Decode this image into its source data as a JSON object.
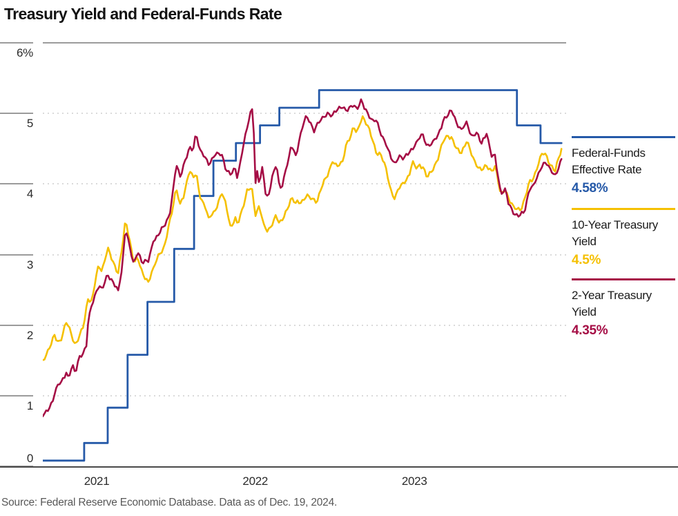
{
  "title": "Treasury Yield and Federal-Funds Rate",
  "source": "Source: Federal Reserve Economic Database. Data as of Dec. 19, 2024.",
  "colors": {
    "fed_funds_blue": "#2559A8",
    "ten_year_yellow": "#F5C000",
    "two_year_crimson": "#A50D45",
    "gridline_gray": "#d4d4d4",
    "axis_gray": "#9b9b9b",
    "baseline_gray": "#4a4a4a",
    "title_black": "#121212",
    "source_gray": "#585858"
  },
  "legend": {
    "items": [
      {
        "line1": "Federal-Funds",
        "line2": "Effective Rate",
        "value": "4.58%",
        "color": "#2559A8"
      },
      {
        "line1": "10-Year Treasury",
        "line2": "Yield",
        "value": "4.5%",
        "color": "#F5C000"
      },
      {
        "line1": "2-Year Treasury",
        "line2": "Yield",
        "value": "4.35%",
        "color": "#A50D45"
      }
    ]
  },
  "chart_data": {
    "type": "line",
    "title": "Treasury Yield and Federal-Funds Rate",
    "xlabel": "",
    "ylabel": "%",
    "ylim": [
      0,
      6
    ],
    "grid": "horizontal-dotted",
    "legend_position": "right",
    "y_axis": {
      "ticks": [
        {
          "label": "6%",
          "value": 6
        },
        {
          "label": "5",
          "value": 5
        },
        {
          "label": "4",
          "value": 4
        },
        {
          "label": "3",
          "value": 3
        },
        {
          "label": "2",
          "value": 2
        },
        {
          "label": "1",
          "value": 1
        },
        {
          "label": "0",
          "value": 0
        }
      ]
    },
    "x_axis": {
      "labels": [
        {
          "label": "2021",
          "f": 0.103
        },
        {
          "label": "2022",
          "f": 0.406
        },
        {
          "label": "2023",
          "f": 0.71
        }
      ]
    },
    "series": [
      {
        "name": "Federal-Funds Effective Rate",
        "key": "fed-funds-line",
        "color": "#2559A8",
        "style": "step",
        "end_value": 4.58,
        "points": [
          [
            0,
            0.08
          ],
          [
            0.079,
            0.33
          ],
          [
            0.124,
            0.83
          ],
          [
            0.162,
            1.58
          ],
          [
            0.2,
            2.33
          ],
          [
            0.251,
            3.08
          ],
          [
            0.289,
            3.83
          ],
          [
            0.326,
            4.33
          ],
          [
            0.369,
            4.58
          ],
          [
            0.415,
            4.83
          ],
          [
            0.452,
            5.08
          ],
          [
            0.528,
            5.33
          ],
          [
            0.906,
            4.83
          ],
          [
            0.951,
            4.58
          ],
          [
            0.991,
            4.58
          ]
        ]
      },
      {
        "name": "10-Year Treasury Yield",
        "key": "ten-year-line",
        "color": "#F5C000",
        "style": "line",
        "end_value": 4.5,
        "points": [
          [
            0,
            1.5
          ],
          [
            0.009,
            1.63
          ],
          [
            0.016,
            1.73
          ],
          [
            0.022,
            1.87
          ],
          [
            0.03,
            1.76
          ],
          [
            0.036,
            1.81
          ],
          [
            0.045,
            2.03
          ],
          [
            0.052,
            1.93
          ],
          [
            0.062,
            1.72
          ],
          [
            0.07,
            1.85
          ],
          [
            0.078,
            2.0
          ],
          [
            0.086,
            2.38
          ],
          [
            0.094,
            2.32
          ],
          [
            0.1,
            2.6
          ],
          [
            0.107,
            2.85
          ],
          [
            0.113,
            2.77
          ],
          [
            0.124,
            3.1
          ],
          [
            0.133,
            2.92
          ],
          [
            0.144,
            2.74
          ],
          [
            0.152,
            3.1
          ],
          [
            0.158,
            3.47
          ],
          [
            0.165,
            3.25
          ],
          [
            0.174,
            2.89
          ],
          [
            0.181,
            2.96
          ],
          [
            0.19,
            2.75
          ],
          [
            0.202,
            2.6
          ],
          [
            0.211,
            2.79
          ],
          [
            0.222,
            3.02
          ],
          [
            0.232,
            3.1
          ],
          [
            0.242,
            3.45
          ],
          [
            0.249,
            3.7
          ],
          [
            0.255,
            3.95
          ],
          [
            0.262,
            3.69
          ],
          [
            0.27,
            3.83
          ],
          [
            0.28,
            4.22
          ],
          [
            0.287,
            4.1
          ],
          [
            0.293,
            4.15
          ],
          [
            0.3,
            3.83
          ],
          [
            0.31,
            3.68
          ],
          [
            0.317,
            3.5
          ],
          [
            0.328,
            3.6
          ],
          [
            0.335,
            3.75
          ],
          [
            0.342,
            3.88
          ],
          [
            0.35,
            3.71
          ],
          [
            0.359,
            3.38
          ],
          [
            0.368,
            3.52
          ],
          [
            0.372,
            3.4
          ],
          [
            0.382,
            3.65
          ],
          [
            0.39,
            3.92
          ],
          [
            0.399,
            3.97
          ],
          [
            0.406,
            3.55
          ],
          [
            0.414,
            3.7
          ],
          [
            0.422,
            3.42
          ],
          [
            0.43,
            3.3
          ],
          [
            0.438,
            3.42
          ],
          [
            0.446,
            3.59
          ],
          [
            0.452,
            3.44
          ],
          [
            0.46,
            3.52
          ],
          [
            0.47,
            3.7
          ],
          [
            0.475,
            3.8
          ],
          [
            0.483,
            3.72
          ],
          [
            0.494,
            3.74
          ],
          [
            0.504,
            3.86
          ],
          [
            0.512,
            3.79
          ],
          [
            0.524,
            3.75
          ],
          [
            0.533,
            3.96
          ],
          [
            0.543,
            4.09
          ],
          [
            0.554,
            4.34
          ],
          [
            0.562,
            4.26
          ],
          [
            0.572,
            4.29
          ],
          [
            0.58,
            4.57
          ],
          [
            0.59,
            4.69
          ],
          [
            0.594,
            4.8
          ],
          [
            0.6,
            4.71
          ],
          [
            0.61,
            4.98
          ],
          [
            0.62,
            4.84
          ],
          [
            0.63,
            4.63
          ],
          [
            0.637,
            4.44
          ],
          [
            0.645,
            4.41
          ],
          [
            0.655,
            4.24
          ],
          [
            0.666,
            3.9
          ],
          [
            0.673,
            3.79
          ],
          [
            0.68,
            3.94
          ],
          [
            0.69,
            4.02
          ],
          [
            0.7,
            4.1
          ],
          [
            0.706,
            4.3
          ],
          [
            0.714,
            4.23
          ],
          [
            0.72,
            4.28
          ],
          [
            0.726,
            4.25
          ],
          [
            0.734,
            4.09
          ],
          [
            0.745,
            4.2
          ],
          [
            0.755,
            4.34
          ],
          [
            0.766,
            4.63
          ],
          [
            0.774,
            4.7
          ],
          [
            0.782,
            4.65
          ],
          [
            0.79,
            4.5
          ],
          [
            0.8,
            4.44
          ],
          [
            0.81,
            4.6
          ],
          [
            0.82,
            4.4
          ],
          [
            0.828,
            4.29
          ],
          [
            0.838,
            4.2
          ],
          [
            0.848,
            4.25
          ],
          [
            0.858,
            4.18
          ],
          [
            0.864,
            4.25
          ],
          [
            0.875,
            3.85
          ],
          [
            0.884,
            3.94
          ],
          [
            0.89,
            3.8
          ],
          [
            0.9,
            3.66
          ],
          [
            0.913,
            3.63
          ],
          [
            0.92,
            3.75
          ],
          [
            0.93,
            4.03
          ],
          [
            0.938,
            4.1
          ],
          [
            0.946,
            4.28
          ],
          [
            0.955,
            4.44
          ],
          [
            0.962,
            4.4
          ],
          [
            0.97,
            4.26
          ],
          [
            0.979,
            4.17
          ],
          [
            0.986,
            4.38
          ],
          [
            0.991,
            4.5
          ]
        ]
      },
      {
        "name": "2-Year Treasury Yield",
        "key": "two-year-line",
        "color": "#A50D45",
        "style": "line",
        "end_value": 4.35,
        "points": [
          [
            0,
            0.72
          ],
          [
            0.009,
            0.78
          ],
          [
            0.018,
            0.9
          ],
          [
            0.022,
            1.02
          ],
          [
            0.03,
            1.16
          ],
          [
            0.036,
            1.18
          ],
          [
            0.045,
            1.34
          ],
          [
            0.049,
            1.26
          ],
          [
            0.056,
            1.45
          ],
          [
            0.062,
            1.31
          ],
          [
            0.07,
            1.55
          ],
          [
            0.077,
            1.6
          ],
          [
            0.083,
            1.68
          ],
          [
            0.086,
            2.0
          ],
          [
            0.094,
            2.3
          ],
          [
            0.1,
            2.44
          ],
          [
            0.107,
            2.59
          ],
          [
            0.113,
            2.5
          ],
          [
            0.124,
            2.71
          ],
          [
            0.133,
            2.62
          ],
          [
            0.144,
            2.48
          ],
          [
            0.152,
            2.83
          ],
          [
            0.158,
            3.42
          ],
          [
            0.165,
            3.15
          ],
          [
            0.174,
            2.84
          ],
          [
            0.181,
            3.05
          ],
          [
            0.19,
            2.88
          ],
          [
            0.202,
            2.9
          ],
          [
            0.211,
            3.2
          ],
          [
            0.222,
            3.3
          ],
          [
            0.232,
            3.4
          ],
          [
            0.242,
            3.55
          ],
          [
            0.249,
            3.9
          ],
          [
            0.255,
            4.28
          ],
          [
            0.262,
            4.1
          ],
          [
            0.27,
            4.31
          ],
          [
            0.28,
            4.5
          ],
          [
            0.287,
            4.47
          ],
          [
            0.293,
            4.72
          ],
          [
            0.3,
            4.48
          ],
          [
            0.31,
            4.37
          ],
          [
            0.317,
            4.28
          ],
          [
            0.328,
            4.43
          ],
          [
            0.342,
            4.41
          ],
          [
            0.35,
            4.2
          ],
          [
            0.359,
            4.13
          ],
          [
            0.368,
            4.21
          ],
          [
            0.372,
            4.09
          ],
          [
            0.382,
            4.52
          ],
          [
            0.39,
            4.78
          ],
          [
            0.399,
            5.05
          ],
          [
            0.402,
            5.07
          ],
          [
            0.406,
            3.98
          ],
          [
            0.41,
            4.2
          ],
          [
            0.414,
            3.98
          ],
          [
            0.42,
            4.25
          ],
          [
            0.426,
            3.84
          ],
          [
            0.43,
            3.82
          ],
          [
            0.438,
            4.1
          ],
          [
            0.446,
            4.28
          ],
          [
            0.452,
            3.95
          ],
          [
            0.458,
            3.97
          ],
          [
            0.464,
            4.2
          ],
          [
            0.47,
            4.35
          ],
          [
            0.475,
            4.56
          ],
          [
            0.483,
            4.4
          ],
          [
            0.49,
            4.63
          ],
          [
            0.498,
            4.87
          ],
          [
            0.504,
            4.94
          ],
          [
            0.512,
            4.86
          ],
          [
            0.518,
            4.74
          ],
          [
            0.524,
            4.84
          ],
          [
            0.533,
            4.92
          ],
          [
            0.543,
            5.02
          ],
          [
            0.554,
            4.97
          ],
          [
            0.562,
            5.04
          ],
          [
            0.572,
            5.1
          ],
          [
            0.58,
            5.03
          ],
          [
            0.59,
            5.1
          ],
          [
            0.594,
            5.15
          ],
          [
            0.6,
            5.07
          ],
          [
            0.608,
            5.19
          ],
          [
            0.614,
            5.07
          ],
          [
            0.62,
            5.0
          ],
          [
            0.63,
            4.9
          ],
          [
            0.637,
            4.9
          ],
          [
            0.645,
            4.73
          ],
          [
            0.655,
            4.6
          ],
          [
            0.666,
            4.35
          ],
          [
            0.673,
            4.26
          ],
          [
            0.68,
            4.4
          ],
          [
            0.69,
            4.36
          ],
          [
            0.7,
            4.45
          ],
          [
            0.71,
            4.55
          ],
          [
            0.72,
            4.65
          ],
          [
            0.726,
            4.69
          ],
          [
            0.734,
            4.53
          ],
          [
            0.745,
            4.59
          ],
          [
            0.755,
            4.69
          ],
          [
            0.766,
            4.93
          ],
          [
            0.774,
            4.97
          ],
          [
            0.782,
            5.03
          ],
          [
            0.79,
            4.87
          ],
          [
            0.8,
            4.77
          ],
          [
            0.81,
            4.88
          ],
          [
            0.82,
            4.68
          ],
          [
            0.828,
            4.73
          ],
          [
            0.838,
            4.56
          ],
          [
            0.848,
            4.72
          ],
          [
            0.858,
            4.38
          ],
          [
            0.864,
            4.41
          ],
          [
            0.875,
            3.88
          ],
          [
            0.884,
            3.92
          ],
          [
            0.89,
            3.7
          ],
          [
            0.9,
            3.58
          ],
          [
            0.908,
            3.55
          ],
          [
            0.913,
            3.57
          ],
          [
            0.92,
            3.6
          ],
          [
            0.93,
            3.95
          ],
          [
            0.938,
            3.98
          ],
          [
            0.946,
            4.1
          ],
          [
            0.955,
            4.28
          ],
          [
            0.962,
            4.31
          ],
          [
            0.97,
            4.2
          ],
          [
            0.979,
            4.13
          ],
          [
            0.986,
            4.25
          ],
          [
            0.991,
            4.35
          ]
        ]
      }
    ]
  }
}
